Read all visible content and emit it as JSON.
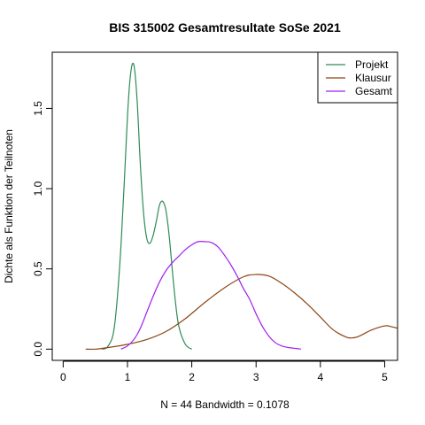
{
  "chart_data": {
    "type": "line",
    "title": "BIS 315002 Gesamtresultate SoSe 2021",
    "xlabel": "N = 44   Bandwidth = 0.1078",
    "ylabel": "Dichte als Funktion der Teilnoten",
    "xlim": [
      -0.17,
      5.2
    ],
    "ylim": [
      -0.07,
      1.85
    ],
    "x_ticks": [
      0,
      1,
      2,
      3,
      4,
      5
    ],
    "x_tick_labels": [
      "0",
      "1",
      "2",
      "3",
      "4",
      "5"
    ],
    "y_ticks": [
      0.0,
      0.5,
      1.0,
      1.5
    ],
    "y_tick_labels": [
      "0.0",
      "0.5",
      "1.0",
      "1.5"
    ],
    "grid": false,
    "legend_position": "top-right",
    "series": [
      {
        "name": "Projekt",
        "color": "#2e8b57",
        "x": [
          0.6,
          0.7,
          0.8,
          0.9,
          1.0,
          1.05,
          1.1,
          1.15,
          1.2,
          1.25,
          1.3,
          1.35,
          1.4,
          1.45,
          1.5,
          1.55,
          1.6,
          1.65,
          1.7,
          1.75,
          1.8,
          1.9,
          2.0
        ],
        "y": [
          0.0,
          0.02,
          0.15,
          0.65,
          1.45,
          1.72,
          1.77,
          1.55,
          1.15,
          0.85,
          0.69,
          0.66,
          0.71,
          0.8,
          0.9,
          0.92,
          0.86,
          0.7,
          0.48,
          0.28,
          0.14,
          0.03,
          0.0
        ]
      },
      {
        "name": "Klausur",
        "color": "#8b4513",
        "x": [
          0.35,
          0.5,
          0.7,
          1.0,
          1.3,
          1.6,
          1.9,
          2.2,
          2.5,
          2.8,
          3.0,
          3.2,
          3.4,
          3.6,
          3.8,
          4.0,
          4.2,
          4.4,
          4.5,
          4.6,
          4.8,
          5.0,
          5.1,
          5.2
        ],
        "y": [
          0.0,
          0.0,
          0.01,
          0.03,
          0.06,
          0.11,
          0.19,
          0.29,
          0.38,
          0.45,
          0.465,
          0.455,
          0.41,
          0.35,
          0.28,
          0.2,
          0.12,
          0.075,
          0.07,
          0.08,
          0.12,
          0.145,
          0.14,
          0.13
        ]
      },
      {
        "name": "Gesamt",
        "color": "#a020f0",
        "x": [
          0.9,
          1.0,
          1.1,
          1.2,
          1.3,
          1.4,
          1.5,
          1.6,
          1.7,
          1.8,
          1.9,
          2.0,
          2.1,
          2.2,
          2.3,
          2.4,
          2.5,
          2.6,
          2.7,
          2.8,
          2.9,
          3.0,
          3.1,
          3.2,
          3.3,
          3.4,
          3.5,
          3.6,
          3.7
        ],
        "y": [
          0.0,
          0.02,
          0.06,
          0.13,
          0.23,
          0.33,
          0.42,
          0.49,
          0.54,
          0.58,
          0.62,
          0.65,
          0.67,
          0.67,
          0.665,
          0.64,
          0.59,
          0.53,
          0.46,
          0.38,
          0.31,
          0.22,
          0.14,
          0.08,
          0.04,
          0.02,
          0.01,
          0.005,
          0.0
        ]
      }
    ]
  }
}
